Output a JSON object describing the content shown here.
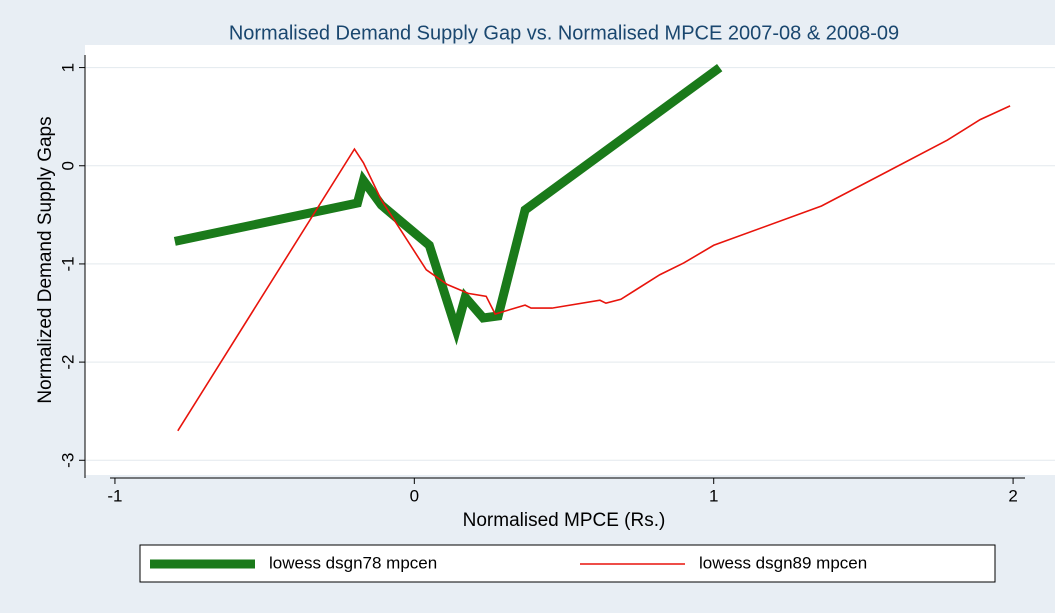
{
  "chart_data": {
    "type": "line",
    "title": "Normalised Demand Supply Gap vs. Normalised MPCE 2007-08 & 2008-09",
    "x_label": "Normalised MPCE (Rs.)",
    "y_label": "Normalized Demand Supply Gaps",
    "xlim": [
      -1.1,
      2.14
    ],
    "ylim": [
      -3.15,
      1.23
    ],
    "xticks": [
      -1,
      0,
      1,
      2
    ],
    "yticks": [
      -3,
      -2,
      -1,
      0,
      1
    ],
    "grid": true,
    "legend": "bottom",
    "series": [
      {
        "name": "lowess dsgn78  mpcen",
        "color": "#1a7a1a",
        "x": [
          -0.8,
          -0.19,
          -0.17,
          -0.11,
          0.05,
          0.14,
          0.17,
          0.23,
          0.28,
          0.37,
          1.02
        ],
        "values": [
          -0.77,
          -0.38,
          -0.15,
          -0.4,
          -0.81,
          -1.67,
          -1.34,
          -1.55,
          -1.53,
          -0.45,
          1.0
        ]
      },
      {
        "name": "lowess dsgn89  mpcen",
        "color": "#e8140c",
        "x": [
          -0.79,
          -0.2,
          -0.17,
          -0.11,
          0.04,
          0.11,
          0.18,
          0.24,
          0.27,
          0.37,
          0.39,
          0.46,
          0.62,
          0.64,
          0.69,
          0.82,
          0.9,
          1.0,
          1.36,
          1.78,
          1.89,
          1.99
        ],
        "values": [
          -2.7,
          0.17,
          0.03,
          -0.35,
          -1.06,
          -1.21,
          -1.3,
          -1.33,
          -1.51,
          -1.42,
          -1.45,
          -1.45,
          -1.37,
          -1.4,
          -1.36,
          -1.11,
          -0.99,
          -0.81,
          -0.41,
          0.26,
          0.47,
          0.61
        ]
      }
    ]
  }
}
